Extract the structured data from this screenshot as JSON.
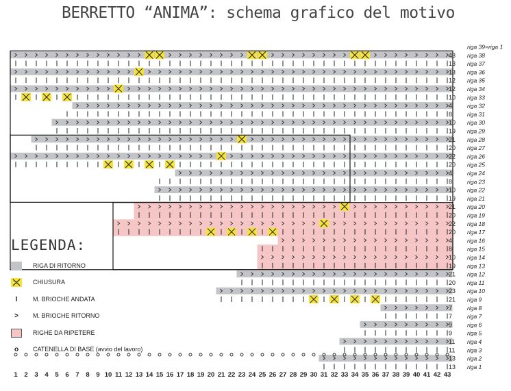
{
  "title": "BERRETTO “ANIMA”: schema grafico del motivo",
  "colors": {
    "gray": "#c2c4c7",
    "yellow": "#f5e23a",
    "pink": "#f6c6c6",
    "ink": "#333333"
  },
  "symbols": {
    "ritorno": ">",
    "andata": "I",
    "base": "o"
  },
  "legend": {
    "title": "LEGENDA:",
    "items": [
      {
        "icon": "gray-square-icon",
        "label": "RIGA DI RITORNO"
      },
      {
        "icon": "yellow-cross-icon",
        "label": "CHIUSURA"
      },
      {
        "icon": "vertical-bar-icon",
        "label": "M. BRIOCHE ANDATA"
      },
      {
        "icon": "chevron-right-icon",
        "label": "M. BRIOCHE RITORNO"
      },
      {
        "icon": "pink-square-icon",
        "label": "RIGHE DA RIPETERE"
      },
      {
        "icon": "circle-icon",
        "label": "CATENELLA DI BASE (avvio del lavoro)"
      }
    ]
  },
  "columns": [
    "1",
    "2",
    "3",
    "4",
    "5",
    "6",
    "7",
    "8",
    "9",
    "10",
    "11",
    "12",
    "13",
    "14",
    "15",
    "16",
    "17",
    "18",
    "19",
    "20",
    "21",
    "22",
    "23",
    "24",
    "25",
    "26",
    "27",
    "28",
    "29",
    "30",
    "31",
    "32",
    "33",
    "34",
    "35",
    "36",
    "37",
    "38",
    "39",
    "40",
    "41",
    "42",
    "43"
  ],
  "rows": [
    {
      "label": "riga 39=riga 1",
      "count": "",
      "type": "label"
    },
    {
      "label": "riga 38",
      "count": "43",
      "type": "return",
      "start": 1,
      "x": [
        14,
        15,
        24,
        25,
        34,
        35
      ]
    },
    {
      "label": "riga 37",
      "count": "13",
      "type": "forward",
      "start": 1
    },
    {
      "label": "riga 36",
      "count": "13",
      "type": "return",
      "start": 1,
      "x": [
        13
      ]
    },
    {
      "label": "riga 35",
      "count": "12",
      "type": "forward",
      "start": 1
    },
    {
      "label": "riga 34",
      "count": "12",
      "type": "return",
      "start": 1,
      "x": [
        11
      ]
    },
    {
      "label": "riga 33",
      "count": "10",
      "type": "forward",
      "start": 1,
      "x": [
        2,
        4,
        6
      ]
    },
    {
      "label": "riga 32",
      "count": "4",
      "type": "return",
      "start": 7
    },
    {
      "label": "riga 31",
      "count": "8",
      "type": "forward",
      "start": 6
    },
    {
      "label": "riga 30",
      "count": "10",
      "type": "return",
      "start": 5
    },
    {
      "label": "riga 29",
      "count": "19",
      "type": "forward",
      "start": 5
    },
    {
      "label": "riga 28",
      "count": "21",
      "type": "return",
      "start": 3,
      "x": [
        23
      ]
    },
    {
      "label": "riga 27",
      "count": "20",
      "type": "forward",
      "start": 3
    },
    {
      "label": "riga 26",
      "count": "22",
      "type": "return",
      "start": 1,
      "x": [
        21
      ]
    },
    {
      "label": "riga 25",
      "count": "20",
      "type": "forward",
      "start": 1,
      "x": [
        10,
        12,
        14,
        16
      ]
    },
    {
      "label": "riga 24",
      "count": "4",
      "type": "return",
      "start": 17
    },
    {
      "label": "riga 23",
      "count": "8",
      "type": "forward",
      "start": 15
    },
    {
      "label": "riga 22",
      "count": "10",
      "type": "return",
      "start": 15
    },
    {
      "label": "riga 21",
      "count": "19",
      "type": "forward",
      "start": 15
    },
    {
      "label": "riga 20",
      "count": "21",
      "type": "return",
      "start": 13,
      "pink": true,
      "x": [
        33
      ]
    },
    {
      "label": "riga 19",
      "count": "20",
      "type": "forward",
      "start": 13,
      "pink": true
    },
    {
      "label": "riga 18",
      "count": "22",
      "type": "return",
      "start": 11,
      "pink": true,
      "x": [
        31
      ]
    },
    {
      "label": "riga 17",
      "count": "20",
      "type": "forward",
      "start": 11,
      "pink": true,
      "x": [
        20,
        22,
        24,
        26
      ]
    },
    {
      "label": "riga 16",
      "count": "4",
      "type": "return",
      "start": 27,
      "pink": true
    },
    {
      "label": "riga 15",
      "count": "8",
      "type": "forward",
      "start": 25,
      "pink": true
    },
    {
      "label": "riga 14",
      "count": "10",
      "type": "return",
      "start": 25,
      "pink": true
    },
    {
      "label": "riga 13",
      "count": "19",
      "type": "forward",
      "start": 25,
      "pink": true
    },
    {
      "label": "riga 12",
      "count": "21",
      "type": "return",
      "start": 23
    },
    {
      "label": "riga 11",
      "count": "20",
      "type": "forward",
      "start": 23
    },
    {
      "label": "riga 10",
      "count": "23",
      "type": "return",
      "start": 21
    },
    {
      "label": "riga 9",
      "count": "21",
      "type": "forward",
      "start": 21,
      "x": [
        30,
        32,
        34,
        36
      ]
    },
    {
      "label": "riga 8",
      "count": "7",
      "type": "return",
      "start": 37
    },
    {
      "label": "riga 7",
      "count": "7",
      "type": "forward",
      "start": 37
    },
    {
      "label": "riga 6",
      "count": "9",
      "type": "return",
      "start": 35
    },
    {
      "label": "riga 5",
      "count": "9",
      "type": "forward",
      "start": 35
    },
    {
      "label": "riga 4",
      "count": "11",
      "type": "return",
      "start": 33
    },
    {
      "label": "riga 3",
      "count": "11",
      "type": "forward",
      "start": 33
    },
    {
      "label": "riga 2",
      "count": "13",
      "type": "return",
      "start": 31
    },
    {
      "label": "riga 1",
      "count": "13",
      "type": "forward",
      "start": 31
    },
    {
      "label": "",
      "count": "",
      "type": "base",
      "start": 1
    }
  ]
}
